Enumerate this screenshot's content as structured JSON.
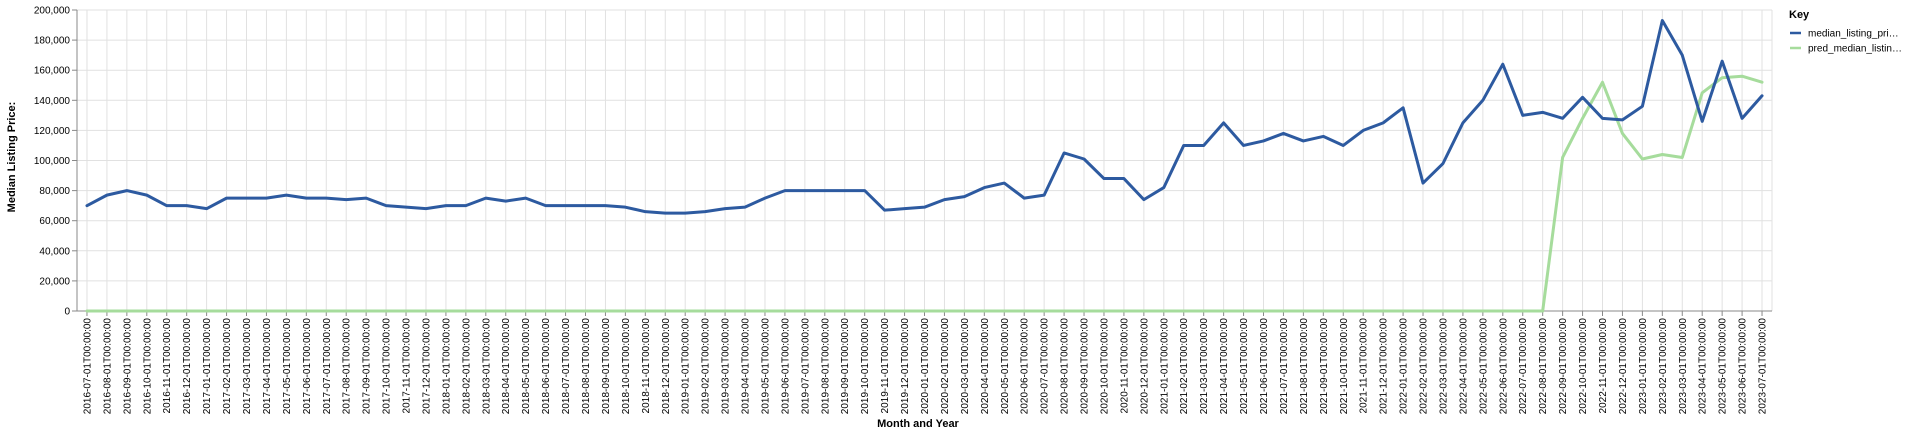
{
  "chart_data": {
    "type": "line",
    "xlabel": "Month and Year",
    "ylabel": "Median Listing Price:",
    "ylim": [
      0,
      200000
    ],
    "y_ticks": [
      "0",
      "20,000",
      "40,000",
      "60,000",
      "80,000",
      "100,000",
      "120,000",
      "140,000",
      "160,000",
      "180,000",
      "200,000"
    ],
    "grid": true,
    "legend": {
      "title": "Key",
      "placement": "top-right",
      "entries": [
        "median_listing_pri…",
        "pred_median_listin…"
      ]
    },
    "colors": {
      "median": "#2d5aa0",
      "pred": "#a6dc9c"
    },
    "categories": [
      "2016-07-01T00:00:00",
      "2016-08-01T00:00:00",
      "2016-09-01T00:00:00",
      "2016-10-01T00:00:00",
      "2016-11-01T00:00:00",
      "2016-12-01T00:00:00",
      "2017-01-01T00:00:00",
      "2017-02-01T00:00:00",
      "2017-03-01T00:00:00",
      "2017-04-01T00:00:00",
      "2017-05-01T00:00:00",
      "2017-06-01T00:00:00",
      "2017-07-01T00:00:00",
      "2017-08-01T00:00:00",
      "2017-09-01T00:00:00",
      "2017-10-01T00:00:00",
      "2017-11-01T00:00:00",
      "2017-12-01T00:00:00",
      "2018-01-01T00:00:00",
      "2018-02-01T00:00:00",
      "2018-03-01T00:00:00",
      "2018-04-01T00:00:00",
      "2018-05-01T00:00:00",
      "2018-06-01T00:00:00",
      "2018-07-01T00:00:00",
      "2018-08-01T00:00:00",
      "2018-09-01T00:00:00",
      "2018-10-01T00:00:00",
      "2018-11-01T00:00:00",
      "2018-12-01T00:00:00",
      "2019-01-01T00:00:00",
      "2019-02-01T00:00:00",
      "2019-03-01T00:00:00",
      "2019-04-01T00:00:00",
      "2019-05-01T00:00:00",
      "2019-06-01T00:00:00",
      "2019-07-01T00:00:00",
      "2019-08-01T00:00:00",
      "2019-09-01T00:00:00",
      "2019-10-01T00:00:00",
      "2019-11-01T00:00:00",
      "2019-12-01T00:00:00",
      "2020-01-01T00:00:00",
      "2020-02-01T00:00:00",
      "2020-03-01T00:00:00",
      "2020-04-01T00:00:00",
      "2020-05-01T00:00:00",
      "2020-06-01T00:00:00",
      "2020-07-01T00:00:00",
      "2020-08-01T00:00:00",
      "2020-09-01T00:00:00",
      "2020-10-01T00:00:00",
      "2020-11-01T00:00:00",
      "2020-12-01T00:00:00",
      "2021-01-01T00:00:00",
      "2021-02-01T00:00:00",
      "2021-03-01T00:00:00",
      "2021-04-01T00:00:00",
      "2021-05-01T00:00:00",
      "2021-06-01T00:00:00",
      "2021-07-01T00:00:00",
      "2021-08-01T00:00:00",
      "2021-09-01T00:00:00",
      "2021-10-01T00:00:00",
      "2021-11-01T00:00:00",
      "2021-12-01T00:00:00",
      "2022-01-01T00:00:00",
      "2022-02-01T00:00:00",
      "2022-03-01T00:00:00",
      "2022-04-01T00:00:00",
      "2022-05-01T00:00:00",
      "2022-06-01T00:00:00",
      "2022-07-01T00:00:00",
      "2022-08-01T00:00:00",
      "2022-09-01T00:00:00",
      "2022-10-01T00:00:00",
      "2022-11-01T00:00:00",
      "2022-12-01T00:00:00",
      "2023-01-01T00:00:00",
      "2023-02-01T00:00:00",
      "2023-03-01T00:00:00",
      "2023-04-01T00:00:00",
      "2023-05-01T00:00:00",
      "2023-06-01T00:00:00",
      "2023-07-01T00:00:00"
    ],
    "series": [
      {
        "name": "median_listing_pri…",
        "values": [
          70000,
          77000,
          80000,
          77000,
          70000,
          70000,
          68000,
          75000,
          75000,
          75000,
          77000,
          75000,
          75000,
          74000,
          75000,
          70000,
          69000,
          68000,
          70000,
          70000,
          75000,
          73000,
          75000,
          70000,
          70000,
          70000,
          70000,
          69000,
          66000,
          65000,
          65000,
          66000,
          68000,
          69000,
          75000,
          80000,
          80000,
          80000,
          80000,
          80000,
          67000,
          68000,
          69000,
          74000,
          76000,
          82000,
          85000,
          75000,
          77000,
          105000,
          101000,
          88000,
          88000,
          74000,
          82000,
          110000,
          110000,
          125000,
          110000,
          113000,
          118000,
          113000,
          116000,
          110000,
          120000,
          125000,
          135000,
          85000,
          98000,
          125000,
          140000,
          164000,
          130000,
          132000,
          128000,
          142000,
          128000,
          127000,
          136000,
          193000,
          170000,
          126000,
          166000,
          128000,
          143000
        ]
      },
      {
        "name": "pred_median_listin…",
        "values": [
          0,
          0,
          0,
          0,
          0,
          0,
          0,
          0,
          0,
          0,
          0,
          0,
          0,
          0,
          0,
          0,
          0,
          0,
          0,
          0,
          0,
          0,
          0,
          0,
          0,
          0,
          0,
          0,
          0,
          0,
          0,
          0,
          0,
          0,
          0,
          0,
          0,
          0,
          0,
          0,
          0,
          0,
          0,
          0,
          0,
          0,
          0,
          0,
          0,
          0,
          0,
          0,
          0,
          0,
          0,
          0,
          0,
          0,
          0,
          0,
          0,
          0,
          0,
          0,
          0,
          0,
          0,
          0,
          0,
          0,
          0,
          0,
          0,
          0,
          102000,
          128000,
          152000,
          118000,
          101000,
          104000,
          102000,
          145000,
          155000,
          156000,
          152000
        ]
      }
    ]
  }
}
